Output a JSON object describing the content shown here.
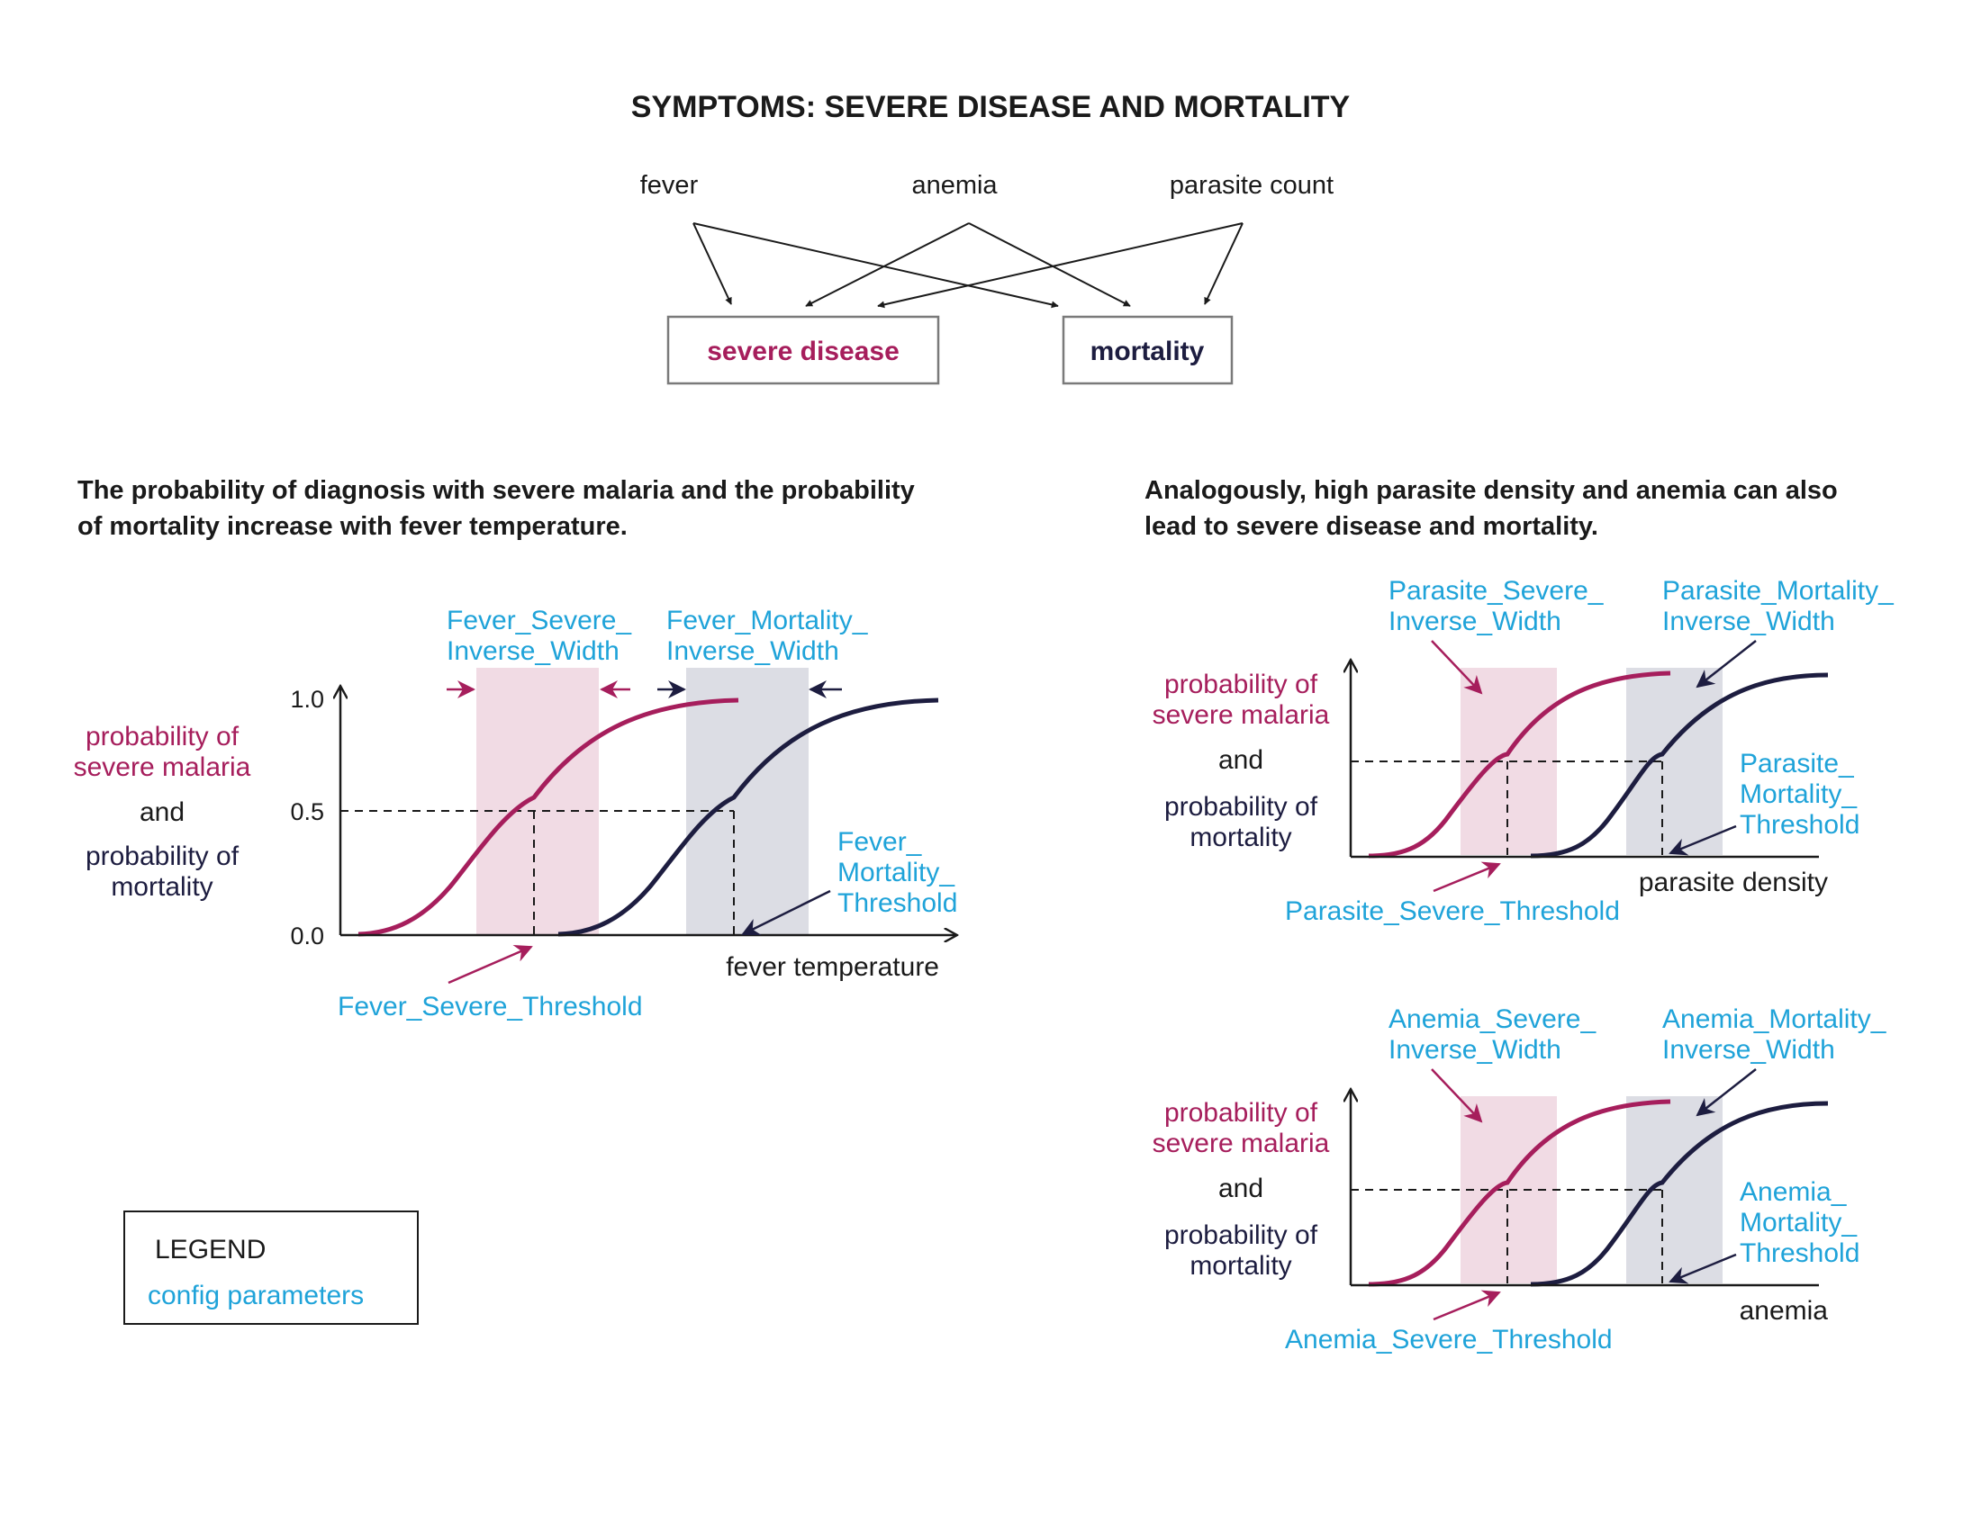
{
  "title": "SYMPTOMS: SEVERE DISEASE AND MORTALITY",
  "colors": {
    "severe": "#a61e5c",
    "mortality": "#1d1d40",
    "param": "#1fa3d9",
    "severe_band": "#f1dbe4",
    "mortality_band": "#dcdde4",
    "box_stroke": "#7a7a7a"
  },
  "flow": {
    "inputs": [
      "fever",
      "anemia",
      "parasite count"
    ],
    "outputs": [
      "severe disease",
      "mortality"
    ]
  },
  "left_caption": [
    "The probability of diagnosis with severe malaria and the probability",
    "of mortality increase with fever temperature."
  ],
  "right_caption": [
    "Analogously, high parasite density and anemia can also",
    "lead to severe disease and mortality."
  ],
  "ylabel": {
    "severe": [
      "probability of",
      "severe malaria"
    ],
    "and": "and",
    "mortality": [
      "probability of",
      "mortality"
    ]
  },
  "chart_data": [
    {
      "type": "line",
      "xlabel": "fever temperature",
      "yticks": [
        "0.0",
        "0.5",
        "1.0"
      ],
      "series": [
        {
          "kind": "severe",
          "curve": "sigmoid"
        },
        {
          "kind": "mortality",
          "curve": "sigmoid"
        }
      ],
      "params": {
        "severe_width": [
          "Fever_Severe_",
          "Inverse_Width"
        ],
        "mortality_width": [
          "Fever_Mortality_",
          "Inverse_Width"
        ],
        "mortality_threshold": [
          "Fever_",
          "Mortality_",
          "Threshold"
        ],
        "severe_threshold": "Fever_Severe_Threshold"
      }
    },
    {
      "type": "line",
      "xlabel": "parasite density",
      "series": [
        {
          "kind": "severe",
          "curve": "sigmoid"
        },
        {
          "kind": "mortality",
          "curve": "sigmoid"
        }
      ],
      "params": {
        "severe_width": [
          "Parasite_Severe_",
          "Inverse_Width"
        ],
        "mortality_width": [
          "Parasite_Mortality_",
          "Inverse_Width"
        ],
        "mortality_threshold": [
          "Parasite_",
          "Mortality_",
          "Threshold"
        ],
        "severe_threshold": "Parasite_Severe_Threshold"
      }
    },
    {
      "type": "line",
      "xlabel": "anemia",
      "series": [
        {
          "kind": "severe",
          "curve": "sigmoid"
        },
        {
          "kind": "mortality",
          "curve": "sigmoid"
        }
      ],
      "params": {
        "severe_width": [
          "Anemia_Severe_",
          "Inverse_Width"
        ],
        "mortality_width": [
          "Anemia_Mortality_",
          "Inverse_Width"
        ],
        "mortality_threshold": [
          "Anemia_",
          "Mortality_",
          "Threshold"
        ],
        "severe_threshold": "Anemia_Severe_Threshold"
      }
    }
  ],
  "legend": {
    "title": "LEGEND",
    "item": "config parameters"
  }
}
